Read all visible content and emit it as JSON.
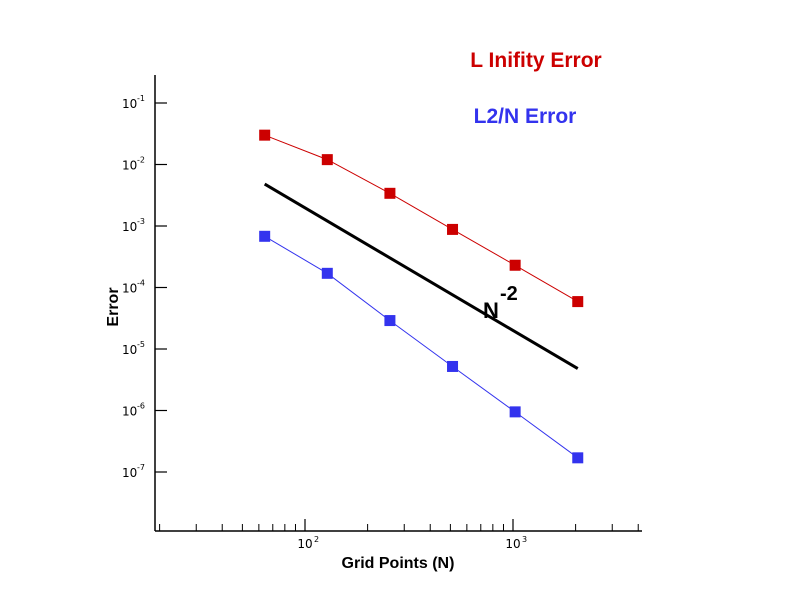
{
  "chart_data": {
    "type": "line",
    "xlabel": "Grid Points (N)",
    "ylabel": "Error",
    "x_scale": "log",
    "y_scale": "log",
    "xlim": [
      20,
      4300
    ],
    "ylim": [
      1e-08,
      0.2
    ],
    "x_ticks": [
      {
        "value": 100,
        "base": "10",
        "exp": "2"
      },
      {
        "value": 1000,
        "base": "10",
        "exp": "3"
      }
    ],
    "y_ticks": [
      {
        "value": 0.1,
        "base": "10",
        "exp": "-1"
      },
      {
        "value": 0.01,
        "base": "10",
        "exp": "-2"
      },
      {
        "value": 0.001,
        "base": "10",
        "exp": "-3"
      },
      {
        "value": 0.0001,
        "base": "10",
        "exp": "-4"
      },
      {
        "value": 1e-05,
        "base": "10",
        "exp": "-5"
      },
      {
        "value": 1e-06,
        "base": "10",
        "exp": "-6"
      },
      {
        "value": 1e-07,
        "base": "10",
        "exp": "-7"
      }
    ],
    "grid": false,
    "legend_position": "top-right",
    "series": [
      {
        "name": "L Inifity Error",
        "color": "#cc0000",
        "marker": "square",
        "x": [
          64,
          128,
          256,
          512,
          1024,
          2048
        ],
        "y": [
          0.03,
          0.012,
          0.0034,
          0.00088,
          0.00023,
          5.9e-05
        ]
      },
      {
        "name": "L2/N Error",
        "color": "#3333ee",
        "marker": "square",
        "x": [
          64,
          128,
          256,
          512,
          1024,
          2048
        ],
        "y": [
          0.00068,
          0.00017,
          2.9e-05,
          5.2e-06,
          9.5e-07,
          1.7e-07
        ]
      }
    ],
    "reference_line": {
      "color": "#000000",
      "x": [
        64,
        2048
      ],
      "y": [
        0.0048,
        4.8e-06
      ]
    },
    "annotation": {
      "base": "N",
      "exp": "-2"
    }
  }
}
